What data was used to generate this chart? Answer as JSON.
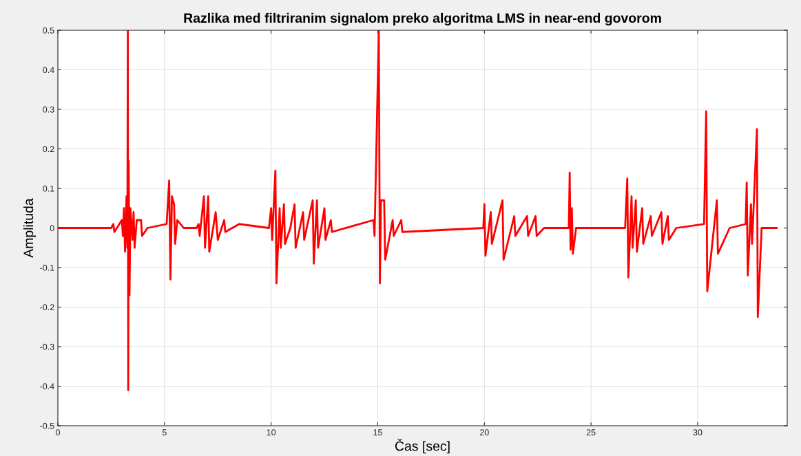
{
  "chart_data": {
    "type": "line",
    "title": "Razlika med filtriranim signalom preko algoritma LMS in near-end govorom",
    "xlabel": "Čas [sec]",
    "ylabel": "Amplituda",
    "x": [
      0,
      2.5,
      2.6,
      2.65,
      3.0,
      3.05,
      3.1,
      3.15,
      3.22,
      3.26,
      3.28,
      3.3,
      3.32,
      3.36,
      3.4,
      3.5,
      3.55,
      3.6,
      3.7,
      3.9,
      3.95,
      4.2,
      5.1,
      5.22,
      5.28,
      5.35,
      5.45,
      5.5,
      5.6,
      5.9,
      6.5,
      6.6,
      6.65,
      6.85,
      6.9,
      7.05,
      7.1,
      7.4,
      7.5,
      7.8,
      7.85,
      8.5,
      9.9,
      10.0,
      10.05,
      10.2,
      10.25,
      10.4,
      10.45,
      10.6,
      10.65,
      10.9,
      11.1,
      11.15,
      11.5,
      11.55,
      11.95,
      12.0,
      12.15,
      12.2,
      12.5,
      12.55,
      12.8,
      12.85,
      14.8,
      14.85,
      15.05,
      15.1,
      15.15,
      15.3,
      15.35,
      15.7,
      15.75,
      16.1,
      16.15,
      19.95,
      20.0,
      20.05,
      20.3,
      20.35,
      20.85,
      20.9,
      21.4,
      21.45,
      22.0,
      22.05,
      22.4,
      22.45,
      22.8,
      23.96,
      24.0,
      24.04,
      24.1,
      24.15,
      24.3,
      26.6,
      26.7,
      26.75,
      26.9,
      26.95,
      27.1,
      27.15,
      27.4,
      27.45,
      27.8,
      27.85,
      28.3,
      28.35,
      28.6,
      28.65,
      29.0,
      30.3,
      30.4,
      30.45,
      30.9,
      30.95,
      31.5,
      32.25,
      32.3,
      32.35,
      32.5,
      32.55,
      32.78,
      32.82,
      33.0,
      33.7
    ],
    "series": [
      {
        "color": "#ff0000",
        "values": [
          0,
          0,
          0.01,
          -0.01,
          0.02,
          -0.02,
          0.05,
          -0.06,
          0.08,
          -0.05,
          0.5,
          -0.41,
          0.17,
          -0.17,
          0.05,
          -0.03,
          0.04,
          -0.05,
          0.02,
          0.02,
          -0.02,
          0,
          0.01,
          0.12,
          -0.13,
          0.08,
          0.06,
          -0.04,
          0.02,
          0,
          0,
          0.01,
          -0.02,
          0.08,
          -0.05,
          0.08,
          -0.06,
          0.04,
          -0.03,
          0.02,
          -0.01,
          0.01,
          0,
          0.05,
          -0.03,
          0.145,
          -0.14,
          0.05,
          -0.05,
          0.06,
          -0.04,
          0,
          0.06,
          -0.05,
          0.04,
          -0.03,
          0.07,
          -0.09,
          0.07,
          -0.05,
          0.05,
          -0.03,
          0.02,
          -0.01,
          0.02,
          -0.02,
          0.5,
          -0.14,
          0.07,
          0.07,
          -0.08,
          0.02,
          -0.02,
          0.02,
          -0.01,
          0,
          0.06,
          -0.07,
          0.04,
          -0.04,
          0.07,
          -0.08,
          0.03,
          -0.02,
          0.03,
          -0.02,
          0.03,
          -0.02,
          0,
          0,
          0.14,
          -0.055,
          0.05,
          -0.065,
          0,
          0,
          0.125,
          -0.125,
          0.08,
          -0.05,
          0.07,
          -0.06,
          0.05,
          -0.04,
          0.03,
          -0.02,
          0.04,
          -0.04,
          0.03,
          -0.03,
          0,
          0.01,
          0.295,
          -0.16,
          0.07,
          -0.065,
          0,
          0.01,
          0.115,
          -0.12,
          0.06,
          -0.04,
          0.25,
          -0.225,
          0,
          0
        ]
      }
    ],
    "xlim": [
      0,
      34.2
    ],
    "ylim": [
      -0.5,
      0.5
    ],
    "xticks": [
      0,
      5,
      10,
      15,
      20,
      25,
      30
    ],
    "yticks": [
      -0.5,
      -0.4,
      -0.3,
      -0.2,
      -0.1,
      0,
      0.1,
      0.2,
      0.3,
      0.4,
      0.5
    ],
    "grid": true,
    "line_style": "solid",
    "marker": "none"
  }
}
